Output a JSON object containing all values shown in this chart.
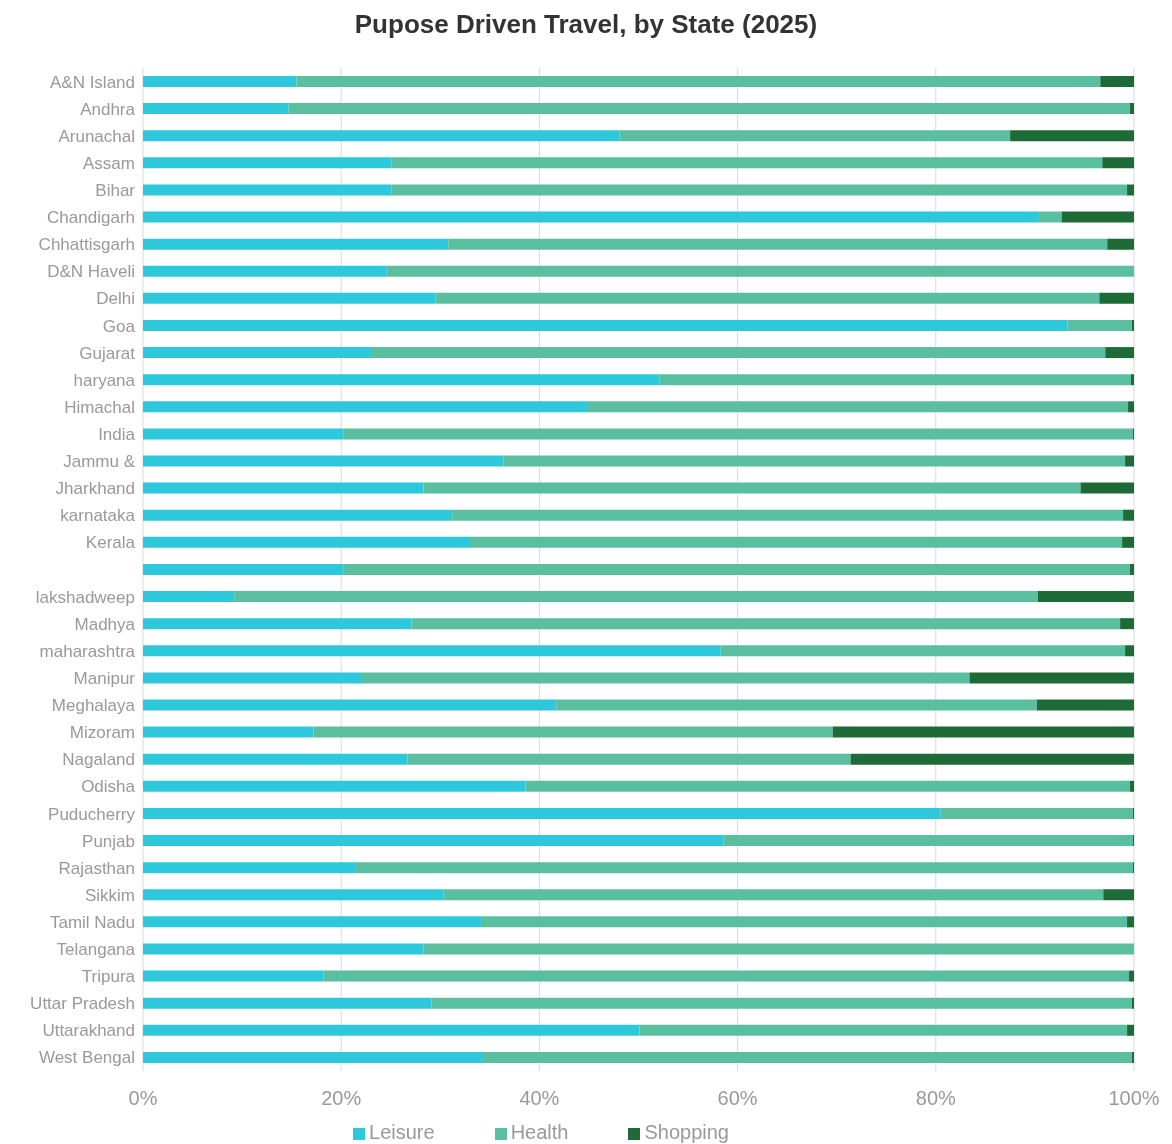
{
  "chart_data": {
    "type": "bar",
    "orientation": "horizontal",
    "stacked": true,
    "title": "Pupose Driven Travel, by State (2025)",
    "categories": [
      "A&N Island",
      "Andhra",
      "Arunachal",
      "Assam",
      "Bihar",
      "Chandigarh",
      "Chhattisgarh",
      "D&N Haveli",
      "Delhi",
      "Goa",
      "Gujarat",
      "haryana",
      "Himachal",
      "India",
      "Jammu &",
      "Jharkhand",
      "karnataka",
      "Kerala",
      null,
      "lakshadweep",
      "Madhya",
      "maharashtra",
      "Manipur",
      "Meghalaya",
      "Mizoram",
      "Nagaland",
      "Odisha",
      "Puducherry",
      "Punjab",
      "Rajasthan",
      "Sikkim",
      "Tamil Nadu",
      "Telangana",
      "Tripura",
      "Uttar Pradesh",
      "Uttarakhand",
      "West Bengal"
    ],
    "series": [
      {
        "name": "Leisure",
        "color": "#2ec8dc",
        "values": [
          15.5,
          14.7,
          48.1,
          25.1,
          25.1,
          90.4,
          30.8,
          24.6,
          29.5,
          93.3,
          23.0,
          52.1,
          44.8,
          20.2,
          36.4,
          28.3,
          31.2,
          33.0,
          20.2,
          9.2,
          27.1,
          58.3,
          22.0,
          41.7,
          17.2,
          26.7,
          38.6,
          80.5,
          58.6,
          21.4,
          30.3,
          34.1,
          28.3,
          18.2,
          29.1,
          50.1,
          34.3
        ]
      },
      {
        "name": "Health",
        "color": "#5abf9f",
        "values": [
          81.1,
          84.9,
          39.4,
          71.7,
          74.2,
          2.3,
          66.5,
          75.4,
          67.0,
          6.5,
          74.1,
          47.6,
          54.6,
          79.7,
          62.7,
          66.3,
          67.7,
          65.8,
          79.4,
          81.1,
          71.5,
          40.8,
          61.4,
          48.5,
          52.4,
          44.7,
          61.0,
          19.4,
          41.3,
          78.5,
          66.6,
          65.2,
          71.7,
          81.3,
          70.7,
          49.2,
          65.5
        ]
      },
      {
        "name": "Shopping",
        "color": "#1e6b37",
        "values": [
          3.4,
          0.4,
          12.5,
          3.2,
          0.7,
          7.3,
          2.7,
          0,
          3.5,
          0.2,
          2.9,
          0.3,
          0.6,
          0.1,
          0.9,
          5.4,
          1.1,
          1.2,
          0.4,
          9.7,
          1.4,
          0.9,
          16.6,
          9.8,
          30.4,
          28.6,
          0.4,
          0.1,
          0.1,
          0.1,
          3.1,
          0.7,
          0,
          0.5,
          0.2,
          0.7,
          0.2
        ]
      }
    ],
    "xlim": [
      0,
      100
    ],
    "xticks": [
      {
        "value": 0,
        "label": "0%"
      },
      {
        "value": 20,
        "label": "20%"
      },
      {
        "value": 40,
        "label": "40%"
      },
      {
        "value": 60,
        "label": "60%"
      },
      {
        "value": 80,
        "label": "80%"
      },
      {
        "value": 100,
        "label": "100%"
      }
    ],
    "grid": "x",
    "legend": "bottom"
  }
}
